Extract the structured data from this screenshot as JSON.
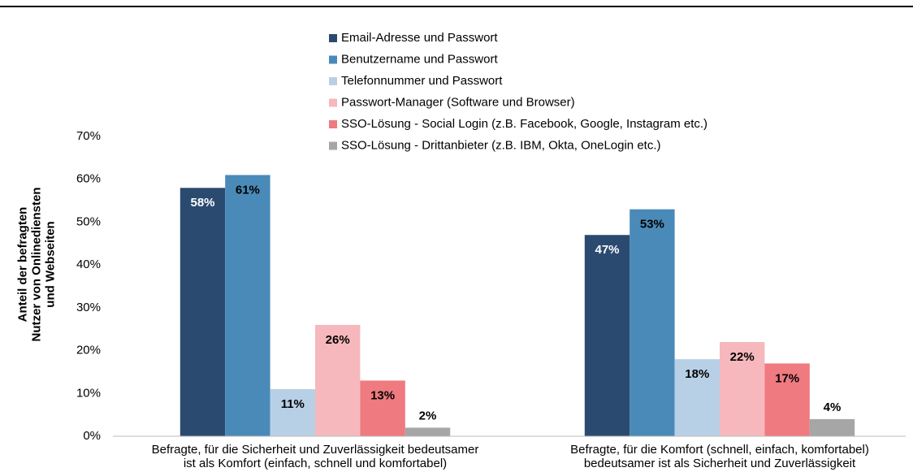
{
  "chart_data": {
    "type": "bar",
    "y_axis_label": "Anteil der befragten\nNutzer von Onlinediensten\nund Webseiten",
    "categories": [
      "Befragte, für die Sicherheit und Zuverlässigkeit bedeutsamer\nist als Komfort (einfach, schnell und komfortabel)",
      "Befragte, für die Komfort (schnell, einfach, komfortabel)\nbedeutsamer ist als Sicherheit und Zuverlässigkeit"
    ],
    "series": [
      {
        "name": "Email-Adresse und Passwort",
        "color": "#2b4a70",
        "label_color": "#ffffff",
        "values": [
          58,
          47
        ],
        "value_labels": [
          "58%",
          "47%"
        ]
      },
      {
        "name": "Benutzername und Passwort",
        "color": "#4a8ab8",
        "label_color": "#000000",
        "values": [
          61,
          53
        ],
        "value_labels": [
          "61%",
          "53%"
        ]
      },
      {
        "name": "Telefonnummer und Passwort",
        "color": "#b8d0e6",
        "label_color": "#000000",
        "values": [
          11,
          18
        ],
        "value_labels": [
          "11%",
          "18%"
        ]
      },
      {
        "name": "Passwort-Manager (Software und Browser)",
        "color": "#f6b8bc",
        "label_color": "#000000",
        "values": [
          26,
          22
        ],
        "value_labels": [
          "26%",
          "22%"
        ]
      },
      {
        "name": "SSO-Lösung - Social Login (z.B. Facebook, Google, Instagram etc.)",
        "color": "#ef7a80",
        "label_color": "#000000",
        "values": [
          13,
          17
        ],
        "value_labels": [
          "13%",
          "17%"
        ]
      },
      {
        "name": "SSO-Lösung - Drittanbieter (z.B. IBM, Okta, OneLogin etc.)",
        "color": "#a6a6a6",
        "label_color": "#000000",
        "values": [
          2,
          4
        ],
        "value_labels": [
          "2%",
          "4%"
        ]
      }
    ],
    "ylim": [
      0,
      70
    ],
    "yticks": [
      {
        "value": 0,
        "label": "0%"
      },
      {
        "value": 10,
        "label": "10%"
      },
      {
        "value": 20,
        "label": "20%"
      },
      {
        "value": 30,
        "label": "30%"
      },
      {
        "value": 40,
        "label": "40%"
      },
      {
        "value": 50,
        "label": "50%"
      },
      {
        "value": 60,
        "label": "60%"
      },
      {
        "value": 70,
        "label": "70%"
      }
    ],
    "grid": false,
    "legend": "top"
  }
}
